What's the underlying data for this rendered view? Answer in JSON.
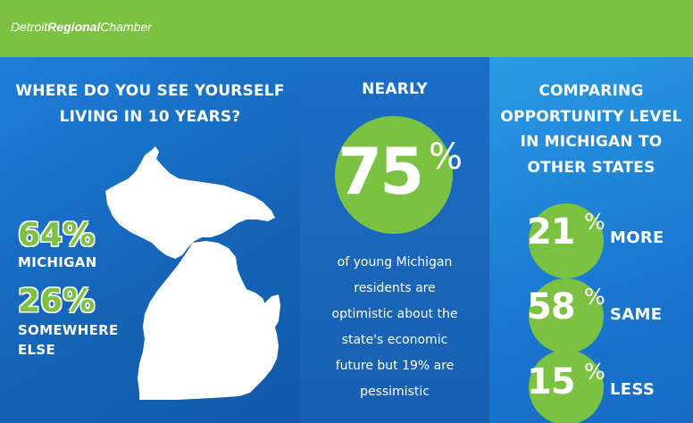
{
  "header": {
    "logo_part1": "Detroit",
    "logo_part2": "Regional",
    "logo_part3": "Chamber",
    "bar_color": "#7cc242"
  },
  "left_panel": {
    "title_line1": "WHERE DO YOU SEE YOURSELF",
    "title_line2": "LIVING IN 10 YEARS?",
    "map_icon": "michigan-map-icon",
    "stats": [
      {
        "percent": "64%",
        "label_line1": "MICHIGAN",
        "label_line2": ""
      },
      {
        "percent": "26%",
        "label_line1": "SOMEWHERE",
        "label_line2": "ELSE"
      }
    ]
  },
  "middle_panel": {
    "title": "NEARLY",
    "number": "75",
    "percent_sign": "%",
    "description": [
      "of young Michigan",
      "residents are",
      "optimistic about the",
      "state's economic",
      "future but 19% are",
      "pessimistic"
    ]
  },
  "right_panel": {
    "title_lines": [
      "COMPARING",
      "OPPORTUNITY LEVEL",
      "IN MICHIGAN TO",
      "OTHER STATES"
    ],
    "items": [
      {
        "number": "21",
        "percent_sign": "%",
        "label": "MORE"
      },
      {
        "number": "58",
        "percent_sign": "%",
        "label": "SAME"
      },
      {
        "number": "15",
        "percent_sign": "%",
        "label": "LESS"
      }
    ]
  },
  "colors": {
    "accent_green": "#7cc242",
    "panel_blue": "#1a6fc2",
    "text_white": "#ffffff"
  }
}
